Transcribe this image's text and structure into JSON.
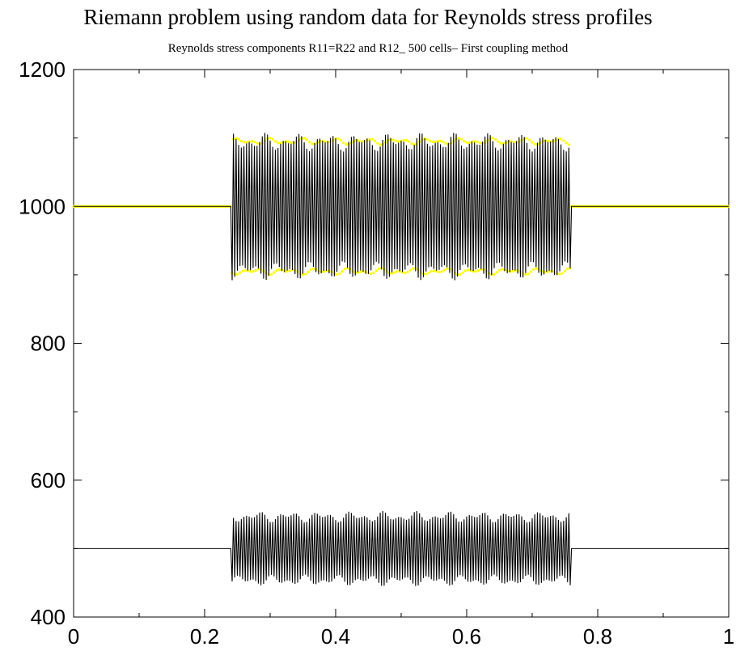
{
  "chart_data": {
    "type": "line",
    "title": "Riemann problem using random data for Reynolds stress profiles",
    "subtitle": "Reynolds stress components R11=R22 and R12_ 500 cells– First coupling method",
    "xlabel": "",
    "ylabel": "",
    "xlim": [
      0,
      1
    ],
    "ylim": [
      400,
      1200
    ],
    "xticks": [
      "0",
      "0.2",
      "0.4",
      "0.6",
      "0.8",
      "1"
    ],
    "yticks": [
      "400",
      "600",
      "800",
      "1000",
      "1200"
    ],
    "grid": false,
    "n_cells": 500,
    "oscillation_region": [
      0.24,
      0.76
    ],
    "series": [
      {
        "color": "#ffff00",
        "style": "points",
        "baseline": 1000,
        "amplitude_range": [
          90,
          100
        ],
        "sample_x": [
          0.0,
          0.2,
          0.24,
          0.26,
          0.28,
          0.3,
          0.32,
          0.34,
          0.36,
          0.38,
          0.4,
          0.5,
          0.6,
          0.7,
          0.74,
          0.76,
          0.8,
          1.0
        ],
        "sample_y": [
          1000,
          1000,
          1000,
          1095,
          905,
          1090,
          910,
          1095,
          905,
          1092,
          908,
          1093,
          907,
          1094,
          906,
          1000,
          1000,
          1000
        ]
      },
      {
        "color": "#000000",
        "style": "line",
        "baseline": 1000,
        "amplitude_range": [
          80,
          108
        ],
        "sample_x": [
          0.0,
          0.2,
          0.24,
          0.26,
          0.28,
          0.3,
          0.32,
          0.34,
          0.36,
          0.38,
          0.4,
          0.5,
          0.6,
          0.7,
          0.74,
          0.76,
          0.8,
          1.0
        ],
        "sample_y": [
          1000,
          1000,
          1000,
          1100,
          900,
          1105,
          897,
          1102,
          903,
          1098,
          900,
          1104,
          898,
          1106,
          895,
          1000,
          1000,
          1000
        ]
      },
      {
        "color": "#000000",
        "style": "line",
        "baseline": 500,
        "amplitude_range": [
          38,
          55
        ],
        "sample_x": [
          0.0,
          0.2,
          0.24,
          0.26,
          0.28,
          0.3,
          0.32,
          0.34,
          0.36,
          0.38,
          0.4,
          0.5,
          0.6,
          0.7,
          0.74,
          0.76,
          0.8,
          1.0
        ],
        "sample_y": [
          500,
          500,
          500,
          545,
          455,
          552,
          448,
          550,
          452,
          547,
          453,
          551,
          449,
          553,
          447,
          500,
          500,
          500
        ]
      }
    ]
  }
}
